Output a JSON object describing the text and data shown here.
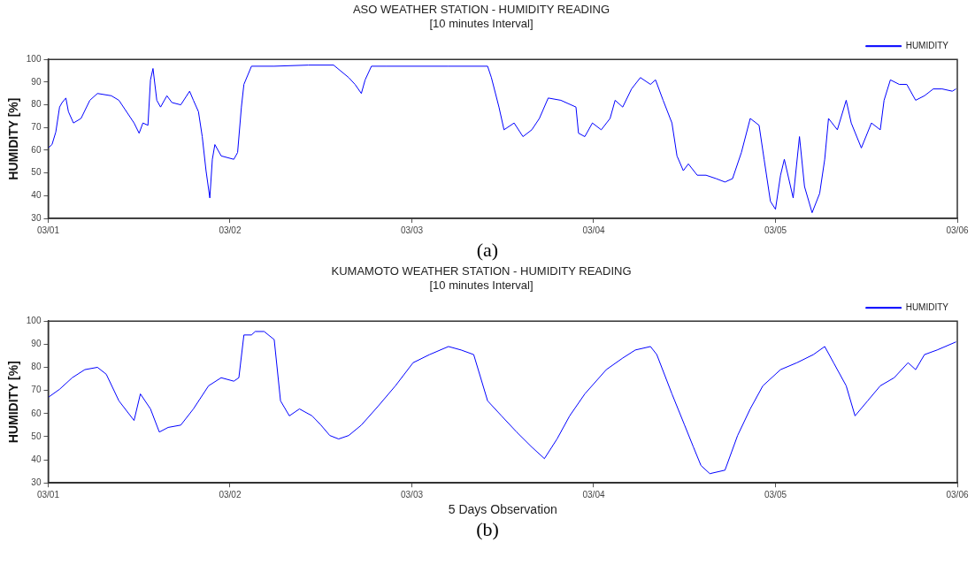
{
  "chart_data": [
    {
      "type": "line",
      "title": "ASO WEATHER STATION - HUMIDITY READING",
      "subtitle": "[10 minutes Interval]",
      "ylabel": "HUMIDITY [%]",
      "annotations": [
        "(a)"
      ],
      "legend": "top right",
      "grid": false,
      "marker": "none",
      "line_style": "solid",
      "xlim": [
        "--03-01",
        "--03-06"
      ],
      "xticks": [
        {
          "value": "--03-01",
          "label": "03/01"
        },
        {
          "value": "--03-02",
          "label": "03/02"
        },
        {
          "value": "--03-03",
          "label": "03/03"
        },
        {
          "value": "--03-04",
          "label": "03/04"
        },
        {
          "value": "--03-05",
          "label": "03/05"
        },
        {
          "value": "--03-06",
          "label": "03/06"
        }
      ],
      "ylim": [
        30,
        100
      ],
      "yticks": [
        30,
        40,
        50,
        60,
        70,
        80,
        90,
        100
      ],
      "series": [
        {
          "name": "HUMIDITY",
          "color": "#0000ff",
          "x": [
            "--03-01T00:00",
            "--03-01T00:30",
            "--03-01T01:00",
            "--03-01T01:30",
            "--03-01T01:50",
            "--03-01T02:20",
            "--03-01T02:40",
            "--03-01T03:20",
            "--03-01T04:20",
            "--03-01T05:30",
            "--03-01T06:30",
            "--03-01T08:20",
            "--03-01T09:20",
            "--03-01T11:20",
            "--03-01T12:00",
            "--03-01T12:30",
            "--03-01T13:10",
            "--03-01T13:30",
            "--03-01T13:50",
            "--03-01T14:20",
            "--03-01T14:50",
            "--03-01T15:40",
            "--03-01T16:20",
            "--03-01T17:30",
            "--03-01T18:40",
            "--03-01T19:10",
            "--03-01T19:50",
            "--03-01T20:20",
            "--03-01T20:50",
            "--03-01T21:20",
            "--03-01T21:40",
            "--03-01T22:00",
            "--03-01T22:50",
            "--03-02T00:30",
            "--03-02T01:00",
            "--03-02T01:30",
            "--03-02T01:50",
            "--03-02T02:50",
            "--03-02T05:50",
            "--03-02T10:20",
            "--03-02T13:40",
            "--03-02T15:40",
            "--03-02T16:30",
            "--03-02T17:20",
            "--03-02T17:50",
            "--03-02T18:40",
            "--03-02T20:40",
            "--03-03T04:50",
            "--03-03T10:00",
            "--03-03T10:30",
            "--03-03T11:30",
            "--03-03T12:10",
            "--03-03T13:30",
            "--03-03T14:40",
            "--03-03T15:50",
            "--03-03T16:50",
            "--03-03T18:00",
            "--03-03T19:40",
            "--03-03T21:40",
            "--03-03T22:00",
            "--03-03T22:50",
            "--03-03T23:50",
            "--03-04T01:00",
            "--03-04T02:10",
            "--03-04T02:50",
            "--03-04T03:50",
            "--03-04T05:00",
            "--03-04T06:10",
            "--03-04T07:30",
            "--03-04T08:10",
            "--03-04T09:10",
            "--03-04T10:20",
            "--03-04T11:00",
            "--03-04T11:50",
            "--03-04T12:30",
            "--03-04T13:40",
            "--03-04T14:50",
            "--03-04T16:10",
            "--03-04T17:20",
            "--03-04T18:20",
            "--03-04T19:30",
            "--03-04T20:40",
            "--03-04T21:50",
            "--03-04T22:30",
            "--03-04T23:20",
            "--03-05T00:00",
            "--03-05T00:40",
            "--03-05T01:10",
            "--03-05T02:20",
            "--03-05T03:10",
            "--03-05T03:50",
            "--03-05T04:50",
            "--03-05T05:50",
            "--03-05T06:30",
            "--03-05T07:00",
            "--03-05T08:10",
            "--03-05T09:20",
            "--03-05T10:00",
            "--03-05T11:20",
            "--03-05T12:40",
            "--03-05T13:50",
            "--03-05T14:20",
            "--03-05T15:10",
            "--03-05T16:20",
            "--03-05T17:20",
            "--03-05T18:30",
            "--03-05T19:40",
            "--03-05T20:50",
            "--03-05T22:00",
            "--03-05T23:20",
            "--03-05T23:50"
          ],
          "values": [
            61,
            62.5,
            68,
            79,
            81,
            83,
            77,
            72,
            74,
            82,
            85,
            84,
            82,
            72,
            67.5,
            72,
            71,
            91,
            96,
            82,
            79,
            84,
            81,
            80,
            86,
            82,
            77,
            66,
            51,
            39,
            56,
            62.5,
            57.5,
            56,
            59,
            79,
            89,
            97,
            97,
            97.5,
            97.5,
            92,
            89,
            85,
            91,
            97,
            97,
            97,
            97,
            92,
            79,
            69,
            72,
            66,
            69,
            74,
            83,
            82,
            79,
            67.5,
            66,
            72,
            69,
            74,
            82,
            79,
            87,
            92,
            89,
            91,
            82,
            72,
            57.5,
            51,
            54,
            49,
            49,
            47.5,
            46,
            47.5,
            59,
            74,
            71,
            56,
            37.5,
            34,
            49,
            56,
            39,
            66,
            44,
            32.5,
            41,
            56,
            74,
            69,
            82,
            72,
            61,
            72,
            69,
            82,
            91,
            89,
            89,
            82,
            84,
            87,
            87,
            86,
            87
          ]
        }
      ]
    },
    {
      "type": "line",
      "title": "KUMAMOTO WEATHER STATION - HUMIDITY READING",
      "subtitle": "[10 minutes Interval]",
      "xlabel": "5 Days Observation",
      "ylabel": "HUMIDITY [%]",
      "annotations": [
        "(b)"
      ],
      "legend": "top right",
      "grid": false,
      "marker": "none",
      "line_style": "solid",
      "xlim": [
        "--03-01",
        "--03-06"
      ],
      "xticks": [
        {
          "value": "--03-01",
          "label": "03/01"
        },
        {
          "value": "--03-02",
          "label": "03/02"
        },
        {
          "value": "--03-03",
          "label": "03/03"
        },
        {
          "value": "--03-04",
          "label": "03/04"
        },
        {
          "value": "--03-05",
          "label": "03/05"
        },
        {
          "value": "--03-06",
          "label": "03/06"
        }
      ],
      "ylim": [
        30,
        100
      ],
      "yticks": [
        30,
        40,
        50,
        60,
        70,
        80,
        90,
        100
      ],
      "series": [
        {
          "name": "HUMIDITY",
          "color": "#0000ff",
          "x": [
            "--03-01T00:00",
            "--03-01T01:30",
            "--03-01T03:10",
            "--03-01T04:50",
            "--03-01T06:30",
            "--03-01T07:40",
            "--03-01T09:20",
            "--03-01T11:20",
            "--03-01T12:10",
            "--03-01T13:30",
            "--03-01T14:40",
            "--03-01T15:50",
            "--03-01T17:30",
            "--03-01T19:10",
            "--03-01T21:10",
            "--03-01T22:50",
            "--03-02T00:30",
            "--03-02T01:10",
            "--03-02T01:50",
            "--03-02T02:50",
            "--03-02T03:20",
            "--03-02T04:30",
            "--03-02T05:50",
            "--03-02T06:40",
            "--03-02T07:50",
            "--03-02T09:10",
            "--03-02T10:50",
            "--03-02T12:00",
            "--03-02T13:10",
            "--03-02T14:20",
            "--03-02T15:40",
            "--03-02T17:20",
            "--03-02T19:30",
            "--03-02T21:50",
            "--03-03T00:10",
            "--03-03T02:20",
            "--03-03T04:50",
            "--03-03T06:30",
            "--03-03T08:10",
            "--03-03T10:00",
            "--03-03T11:50",
            "--03-03T13:50",
            "--03-03T15:50",
            "--03-03T17:30",
            "--03-03T19:10",
            "--03-03T20:50",
            "--03-03T22:50",
            "--03-04T01:40",
            "--03-04T03:50",
            "--03-04T05:30",
            "--03-04T07:30",
            "--03-04T08:20",
            "--03-04T10:20",
            "--03-04T12:00",
            "--03-04T13:10",
            "--03-04T14:10",
            "--03-04T15:20",
            "--03-04T17:20",
            "--03-04T19:00",
            "--03-04T20:40",
            "--03-04T22:20",
            "--03-05T00:40",
            "--03-05T02:50",
            "--03-05T05:00",
            "--03-05T06:30",
            "--03-05T07:40",
            "--03-05T09:20",
            "--03-05T10:30",
            "--03-05T12:10",
            "--03-05T13:50",
            "--03-05T15:40",
            "--03-05T17:30",
            "--03-05T18:30",
            "--03-05T19:40",
            "--03-05T21:20",
            "--03-05T23:50"
          ],
          "values": [
            67,
            70.5,
            75.5,
            79,
            80,
            77,
            65.5,
            57,
            68.5,
            62,
            52,
            54,
            55,
            62,
            72,
            75.5,
            74,
            75.5,
            94,
            94,
            95.5,
            95.5,
            92,
            65.5,
            59,
            62,
            59,
            55,
            50.5,
            49,
            50.5,
            55,
            63,
            72,
            82,
            85.5,
            89,
            87.5,
            85.5,
            65.5,
            59,
            52,
            45.5,
            40.5,
            49,
            59,
            68.5,
            79,
            84,
            87.5,
            89,
            85.5,
            68.5,
            55,
            45.5,
            37.5,
            34,
            35.5,
            50.5,
            62,
            72,
            79,
            82,
            85.5,
            89,
            82,
            72,
            59,
            65.5,
            72,
            75.5,
            82,
            79,
            85.5,
            87.5,
            91
          ]
        }
      ]
    }
  ]
}
